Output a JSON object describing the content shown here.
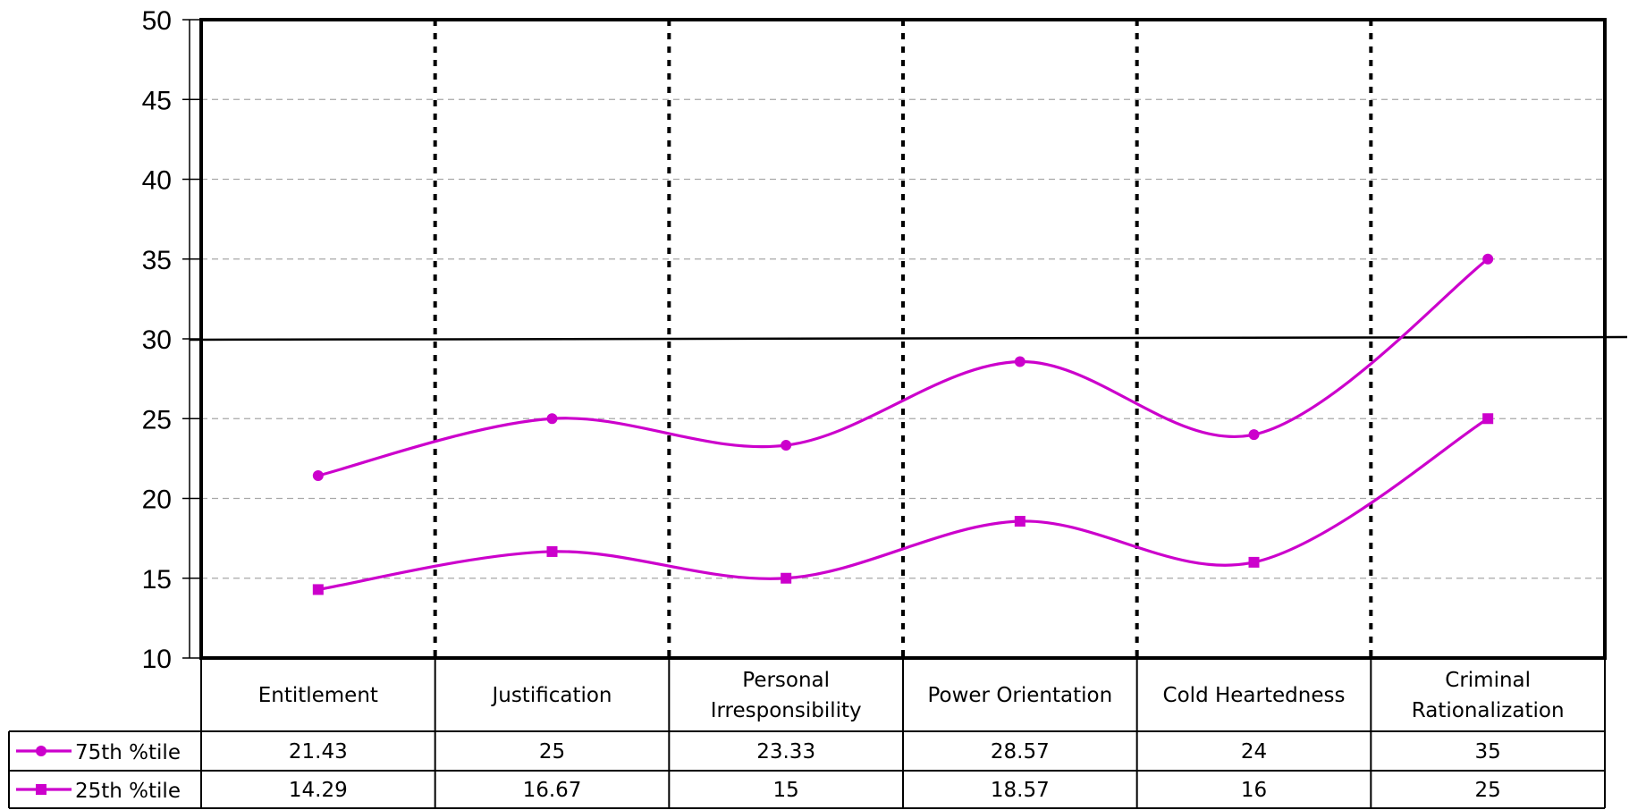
{
  "chart_data": {
    "type": "line",
    "title": "",
    "xlabel": "",
    "ylabel": "",
    "ylim": [
      10,
      50
    ],
    "yticks": [
      10,
      15,
      20,
      25,
      30,
      35,
      40,
      45,
      50
    ],
    "grid": "horizontal dashed",
    "reference_line": 30,
    "categories": [
      [
        "Entitlement"
      ],
      [
        "Justification"
      ],
      [
        "Personal",
        "Irresponsibility"
      ],
      [
        "Power Orientation"
      ],
      [
        "Cold Heartedness"
      ],
      [
        "Criminal",
        "Rationalization"
      ]
    ],
    "series": [
      {
        "name": "75th %tile",
        "marker": "circle",
        "color": "#cc00cc",
        "values": [
          21.43,
          25,
          23.33,
          28.57,
          24,
          35
        ],
        "labels": [
          "21.43",
          "25",
          "23.33",
          "28.57",
          "24",
          "35"
        ]
      },
      {
        "name": "25th %tile",
        "marker": "square",
        "color": "#cc00cc",
        "values": [
          14.29,
          16.67,
          15,
          18.57,
          16,
          25
        ],
        "labels": [
          "14.29",
          "16.67",
          "15",
          "18.57",
          "16",
          "25"
        ]
      }
    ],
    "legend_placement": "data table"
  }
}
